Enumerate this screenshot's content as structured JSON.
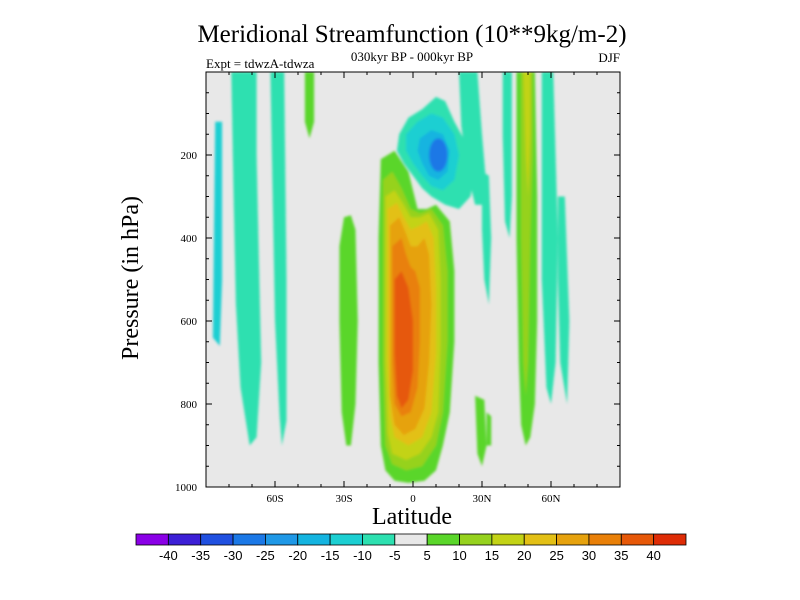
{
  "chart_data": {
    "type": "heatmap",
    "title": "Meridional Streamfunction (10**9kg/m-2)",
    "subtitle": "030kyr BP - 000kyr BP",
    "left_label": "Expt = tdwzA-tdwza",
    "right_label": "DJF",
    "xlabel": "Latitude",
    "ylabel": "Pressure (in hPa)",
    "xlim": [
      -90,
      90
    ],
    "ylim": [
      1000,
      0
    ],
    "y_reversed": true,
    "x_ticks": [
      {
        "value": -60,
        "label": "60S"
      },
      {
        "value": -30,
        "label": "30S"
      },
      {
        "value": 0,
        "label": "0"
      },
      {
        "value": 30,
        "label": "30N"
      },
      {
        "value": 60,
        "label": "60N"
      }
    ],
    "y_ticks": [
      {
        "value": 200,
        "label": "200"
      },
      {
        "value": 400,
        "label": "400"
      },
      {
        "value": 600,
        "label": "600"
      },
      {
        "value": 800,
        "label": "800"
      },
      {
        "value": 1000,
        "label": "1000"
      }
    ],
    "colorbar": {
      "levels": [
        "-40",
        "-35",
        "-30",
        "-25",
        "-20",
        "-15",
        "-10",
        "-5",
        "5",
        "10",
        "15",
        "20",
        "25",
        "30",
        "35",
        "40"
      ],
      "colors": [
        "#8a00e6",
        "#3c1fd6",
        "#2050e0",
        "#1b78e6",
        "#1f98e6",
        "#14b4e0",
        "#1ccfd2",
        "#2de0b0",
        "#e8e8e8",
        "#5ad62a",
        "#96d21e",
        "#c3d316",
        "#e3c016",
        "#e6a20e",
        "#e98008",
        "#e65808",
        "#de2c06"
      ]
    },
    "background_color": "#e8e8e8",
    "features": [
      {
        "name": "upper tropospheric negative cell",
        "lat": [
          -3,
          20
        ],
        "p": [
          60,
          330
        ],
        "min_value": -25
      },
      {
        "name": "equatorial positive cell",
        "lat": [
          -10,
          12
        ],
        "p": [
          340,
          990
        ],
        "max_value": 40
      },
      {
        "name": "southern high-latitude negative band",
        "lat": [
          -90,
          -75
        ],
        "p": [
          0,
          900
        ],
        "min_value": -15
      },
      {
        "name": "northern mid-latitude positive band",
        "lat": [
          45,
          52
        ],
        "p": [
          0,
          900
        ],
        "max_value": 20
      }
    ]
  }
}
